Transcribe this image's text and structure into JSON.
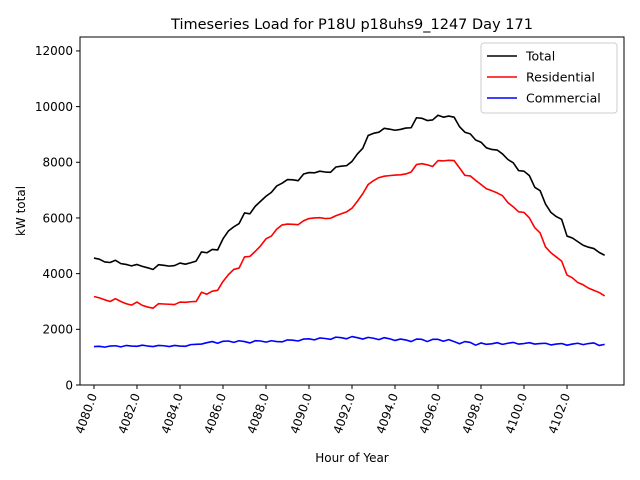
{
  "chart_data": {
    "type": "line",
    "title": "Timeseries Load for P18U p18uhs9_1247  Day 171",
    "xlabel": "Hour of Year",
    "ylabel": "kW total",
    "xlim": [
      4079.35,
      4104.65
    ],
    "ylim": [
      0,
      12500
    ],
    "xticks": [
      4080,
      4082,
      4084,
      4086,
      4088,
      4090,
      4092,
      4094,
      4096,
      4098,
      4100,
      4102
    ],
    "xtick_labels": [
      "4080.0",
      "4082.0",
      "4084.0",
      "4086.0",
      "4088.0",
      "4090.0",
      "4092.0",
      "4094.0",
      "4096.0",
      "4098.0",
      "4100.0",
      "4102.0"
    ],
    "yticks": [
      0,
      2000,
      4000,
      6000,
      8000,
      10000,
      12000
    ],
    "ytick_labels": [
      "0",
      "2000",
      "4000",
      "6000",
      "8000",
      "10000",
      "12000"
    ],
    "legend_position": "top-right",
    "x_start": 4080.0,
    "x_step": 0.25,
    "series": [
      {
        "name": "Total",
        "color": "#000000",
        "values": [
          4560,
          4520,
          4420,
          4400,
          4480,
          4360,
          4330,
          4280,
          4330,
          4260,
          4210,
          4150,
          4320,
          4300,
          4270,
          4290,
          4380,
          4340,
          4390,
          4450,
          4780,
          4750,
          4870,
          4850,
          5250,
          5530,
          5680,
          5800,
          6180,
          6150,
          6420,
          6600,
          6780,
          6920,
          7150,
          7250,
          7380,
          7370,
          7340,
          7580,
          7630,
          7620,
          7680,
          7650,
          7640,
          7830,
          7860,
          7880,
          8030,
          8300,
          8500,
          8960,
          9040,
          9080,
          9220,
          9190,
          9150,
          9180,
          9230,
          9240,
          9600,
          9580,
          9500,
          9520,
          9690,
          9620,
          9660,
          9620,
          9280,
          9080,
          9020,
          8800,
          8720,
          8520,
          8460,
          8440,
          8300,
          8100,
          7980,
          7700,
          7680,
          7520,
          7100,
          6980,
          6500,
          6200,
          6050,
          5950,
          5350,
          5280,
          5150,
          5020,
          4950,
          4900,
          4760,
          4660
        ]
      },
      {
        "name": "Residential",
        "color": "#ff0000",
        "values": [
          3180,
          3130,
          3060,
          3000,
          3100,
          3000,
          2920,
          2870,
          2980,
          2860,
          2800,
          2760,
          2920,
          2910,
          2900,
          2890,
          2980,
          2970,
          2990,
          3000,
          3330,
          3260,
          3370,
          3400,
          3720,
          3960,
          4150,
          4200,
          4600,
          4620,
          4800,
          5000,
          5250,
          5350,
          5600,
          5750,
          5780,
          5770,
          5760,
          5900,
          5980,
          6000,
          6010,
          5980,
          5990,
          6080,
          6150,
          6220,
          6350,
          6600,
          6870,
          7200,
          7340,
          7450,
          7500,
          7520,
          7540,
          7550,
          7580,
          7650,
          7920,
          7950,
          7910,
          7850,
          8060,
          8050,
          8070,
          8060,
          7800,
          7530,
          7510,
          7350,
          7200,
          7050,
          6980,
          6900,
          6800,
          6550,
          6400,
          6220,
          6200,
          6000,
          5650,
          5460,
          4960,
          4750,
          4600,
          4450,
          3950,
          3850,
          3680,
          3600,
          3480,
          3400,
          3320,
          3200
        ]
      },
      {
        "name": "Commercial",
        "color": "#0000ff",
        "values": [
          1380,
          1390,
          1360,
          1400,
          1410,
          1370,
          1420,
          1400,
          1390,
          1430,
          1400,
          1380,
          1420,
          1410,
          1380,
          1420,
          1400,
          1390,
          1450,
          1460,
          1470,
          1520,
          1560,
          1500,
          1570,
          1580,
          1530,
          1590,
          1560,
          1510,
          1590,
          1580,
          1540,
          1590,
          1560,
          1550,
          1620,
          1610,
          1580,
          1650,
          1660,
          1620,
          1690,
          1670,
          1640,
          1720,
          1700,
          1660,
          1740,
          1700,
          1650,
          1710,
          1680,
          1630,
          1700,
          1660,
          1600,
          1650,
          1620,
          1560,
          1650,
          1640,
          1560,
          1640,
          1640,
          1570,
          1630,
          1560,
          1480,
          1560,
          1530,
          1430,
          1510,
          1460,
          1480,
          1520,
          1460,
          1500,
          1530,
          1470,
          1490,
          1520,
          1470,
          1490,
          1500,
          1440,
          1470,
          1490,
          1430,
          1470,
          1500,
          1450,
          1490,
          1510,
          1420,
          1460
        ]
      }
    ]
  }
}
